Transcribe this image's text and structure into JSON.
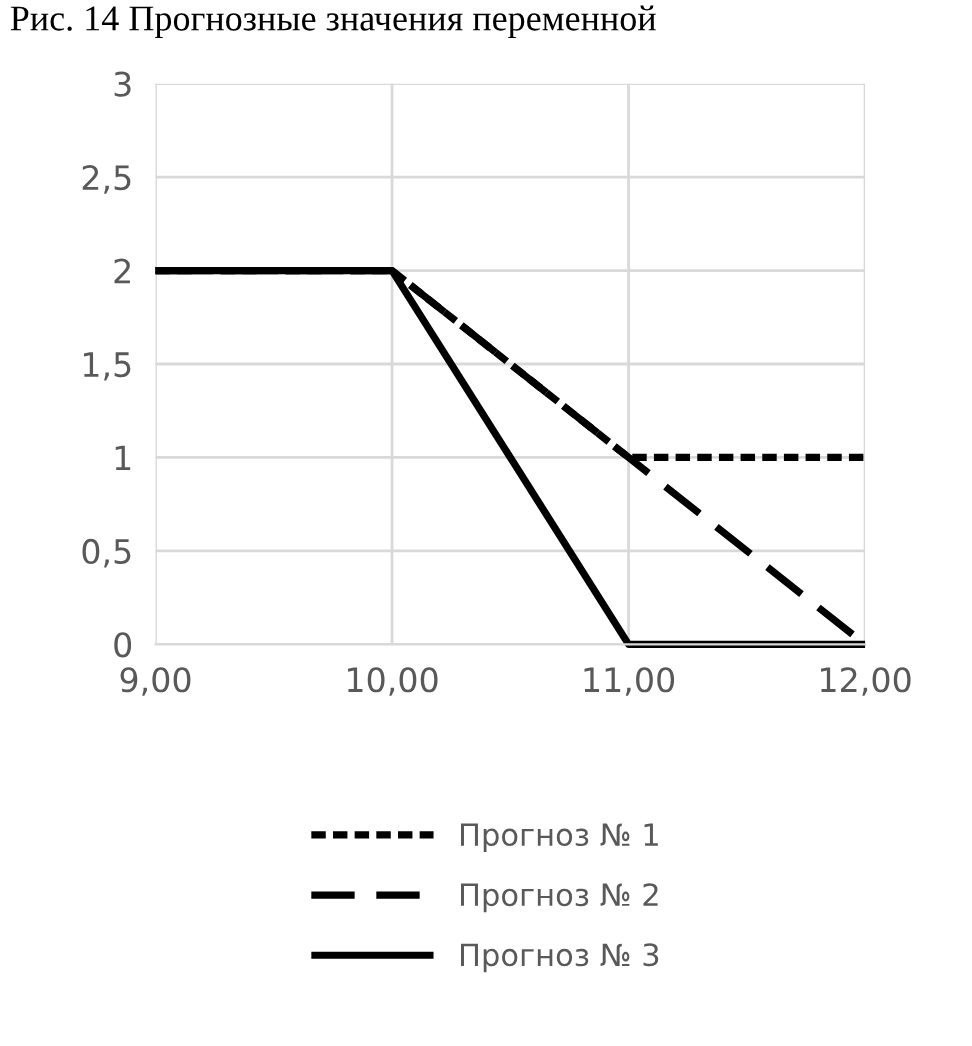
{
  "chart_data": {
    "type": "line",
    "title": "Рис. 14 Прогнозные значения переменной",
    "x": [
      9,
      10,
      11,
      12
    ],
    "series": [
      {
        "name": "Прогноз № 1",
        "color": "#000000",
        "line_style": "dotted",
        "values": [
          2,
          2,
          1,
          1
        ]
      },
      {
        "name": "Прогноз № 2",
        "color": "#000000",
        "line_style": "dashed",
        "values": [
          2,
          2,
          1,
          0
        ]
      },
      {
        "name": "Прогноз № 3",
        "color": "#000000",
        "line_style": "solid",
        "values": [
          2,
          2,
          0,
          0
        ]
      }
    ],
    "xlim": [
      9,
      12
    ],
    "xticks": [
      {
        "value": 9,
        "label": "9,00"
      },
      {
        "value": 10,
        "label": "10,00"
      },
      {
        "value": 11,
        "label": "11,00"
      },
      {
        "value": 12,
        "label": "12,00"
      }
    ],
    "ylim": [
      0,
      3
    ],
    "yticks": [
      0,
      {
        "value": 0.5,
        "label": "0,5"
      },
      1,
      {
        "value": 1.5,
        "label": "1,5"
      },
      2,
      {
        "value": 2.5,
        "label": "2,5"
      },
      3
    ],
    "grid": true,
    "legend": "bottom"
  }
}
